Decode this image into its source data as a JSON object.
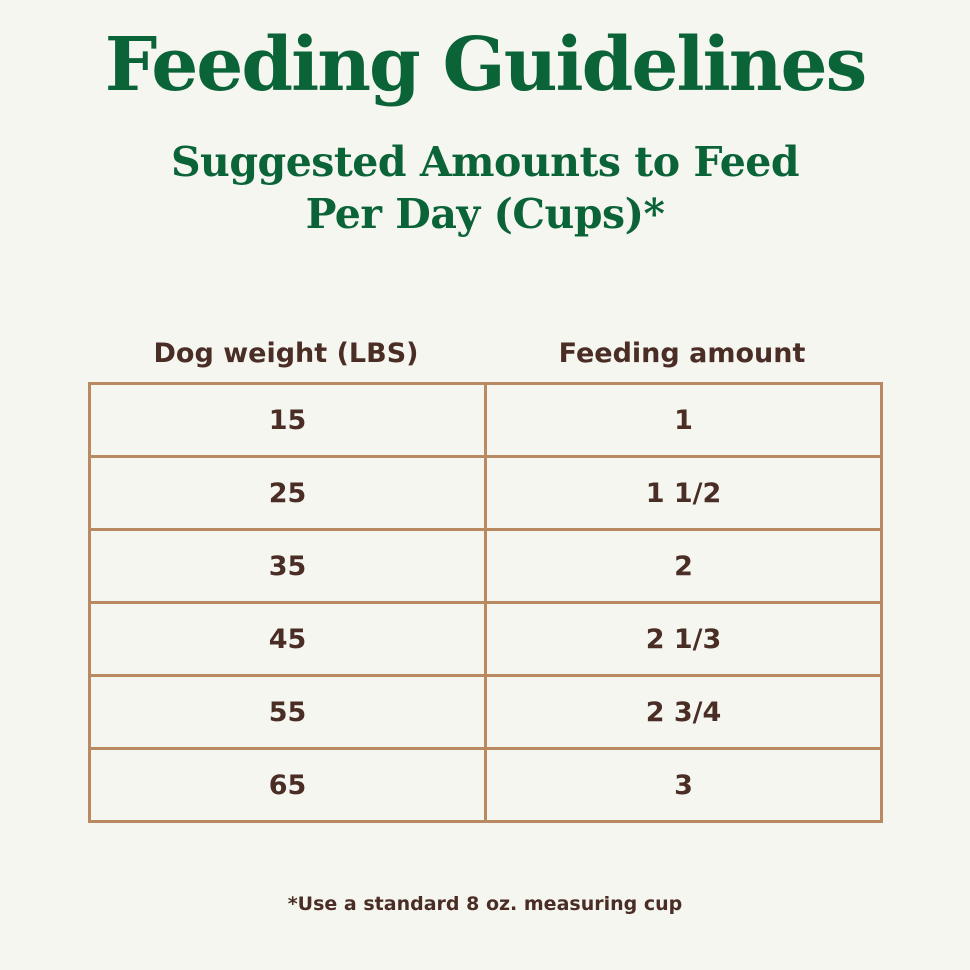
{
  "colors": {
    "background": "#f6f6f1",
    "heading": "#0b6338",
    "text": "#4a2d24",
    "border": "#b98a62"
  },
  "title": "Feeding Guidelines",
  "subtitle": {
    "line1": "Suggested Amounts to Feed",
    "line2": "Per Day (Cups)*"
  },
  "table": {
    "headers": {
      "weight": "Dog weight (LBS)",
      "amount": "Feeding amount"
    },
    "rows": [
      {
        "weight": "15",
        "amount": "1"
      },
      {
        "weight": "25",
        "amount": "1 1/2"
      },
      {
        "weight": "35",
        "amount": "2"
      },
      {
        "weight": "45",
        "amount": "2 1/3"
      },
      {
        "weight": "55",
        "amount": "2 3/4"
      },
      {
        "weight": "65",
        "amount": "3"
      }
    ]
  },
  "footnote": "*Use a standard 8 oz. measuring cup"
}
